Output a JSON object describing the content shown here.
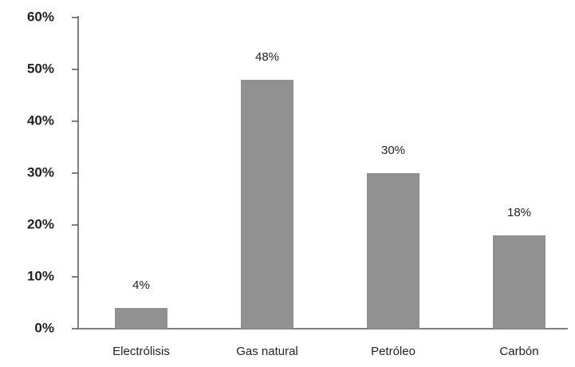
{
  "chart_data": {
    "type": "bar",
    "categories": [
      "Electrólisis",
      "Gas natural",
      "Petróleo",
      "Carbón"
    ],
    "values": [
      4,
      48,
      30,
      18
    ],
    "value_labels": [
      "4%",
      "48%",
      "30%",
      "18%"
    ],
    "color": "#919191",
    "ylim": [
      0,
      60
    ],
    "yticks": [
      {
        "value": 0,
        "label": "0%"
      },
      {
        "value": 10,
        "label": "10%"
      },
      {
        "value": 20,
        "label": "20%"
      },
      {
        "value": 30,
        "label": "30%"
      },
      {
        "value": 40,
        "label": "40%"
      },
      {
        "value": 50,
        "label": "50%"
      },
      {
        "value": 60,
        "label": "60%"
      }
    ],
    "grid": false
  }
}
